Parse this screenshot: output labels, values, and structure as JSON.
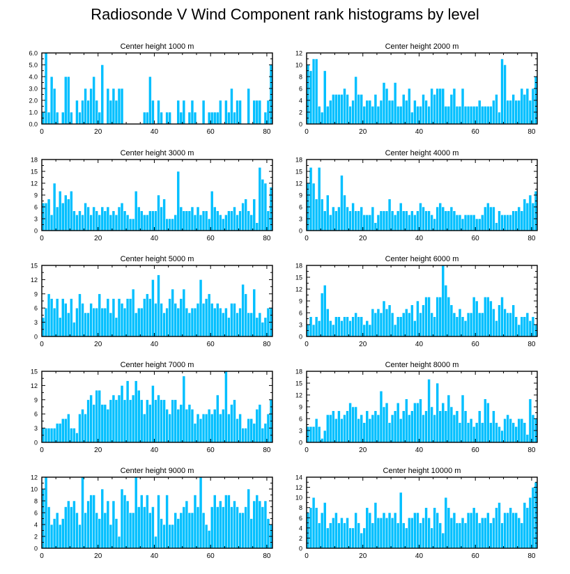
{
  "figure": {
    "title": "Radiosonde V Wind Component rank histograms by level",
    "bar_color": "#00bfff",
    "bar_edge_color": "#ffffff",
    "axis_color": "#000000"
  },
  "chart_data": [
    {
      "type": "bar",
      "title": "Center height 1000 m",
      "x_ticks": [
        0,
        20,
        40,
        60,
        80
      ],
      "y_ticks": [
        "0.0",
        "1.0",
        "2.0",
        "3.0",
        "4.0",
        "5.0",
        "6.0"
      ],
      "ylim": [
        0,
        6
      ],
      "values": [
        1,
        6,
        1,
        4,
        3,
        1,
        0,
        1,
        4,
        4,
        1,
        0,
        2,
        1,
        2,
        3,
        2,
        3,
        4,
        2,
        1,
        5,
        0,
        3,
        2,
        3,
        2,
        3,
        3,
        0,
        0,
        0,
        0,
        0,
        0,
        0,
        1,
        1,
        4,
        2,
        0,
        2,
        1,
        0,
        1,
        1,
        0,
        0,
        2,
        1,
        2,
        0,
        1,
        2,
        1,
        0,
        0,
        2,
        0,
        1,
        1,
        1,
        1,
        2,
        0,
        2,
        1,
        3,
        1,
        2,
        2,
        0,
        0,
        3,
        0,
        2,
        2,
        2,
        0,
        1,
        2,
        5
      ]
    },
    {
      "type": "bar",
      "title": "Center height 2000 m",
      "x_ticks": [
        0,
        20,
        40,
        60,
        80
      ],
      "y_ticks": [
        "0",
        "2",
        "4",
        "6",
        "8",
        "10",
        "12"
      ],
      "ylim": [
        0,
        12
      ],
      "values": [
        10,
        9,
        11,
        11,
        3,
        2,
        9,
        3,
        4,
        5,
        5,
        5,
        5,
        6,
        5,
        3,
        4,
        8,
        5,
        5,
        3,
        4,
        4,
        3,
        5,
        3,
        4,
        7,
        6,
        4,
        4,
        7,
        3,
        3,
        5,
        4,
        6,
        2,
        4,
        3,
        3,
        5,
        4,
        3,
        6,
        5,
        6,
        6,
        6,
        3,
        3,
        5,
        6,
        3,
        3,
        6,
        3,
        3,
        3,
        3,
        3,
        4,
        3,
        3,
        3,
        3,
        4,
        5,
        2,
        11,
        10,
        4,
        4,
        5,
        4,
        4,
        6,
        5,
        6,
        4,
        6,
        8
      ]
    },
    {
      "type": "bar",
      "title": "Center height 3000 m",
      "x_ticks": [
        0,
        20,
        40,
        60,
        80
      ],
      "y_ticks": [
        "0",
        "3",
        "6",
        "9",
        "12",
        "15",
        "18"
      ],
      "ylim": [
        0,
        18
      ],
      "values": [
        7,
        7,
        8,
        4,
        12,
        6,
        10,
        7,
        9,
        8,
        10,
        5,
        4,
        5,
        4,
        7,
        6,
        4,
        6,
        5,
        4,
        6,
        5,
        6,
        4,
        5,
        4,
        6,
        7,
        5,
        4,
        3,
        3,
        10,
        6,
        5,
        4,
        4,
        5,
        5,
        5,
        9,
        6,
        8,
        3,
        3,
        3,
        4,
        15,
        6,
        5,
        5,
        5,
        6,
        4,
        6,
        4,
        5,
        5,
        3,
        10,
        6,
        5,
        4,
        3,
        4,
        5,
        5,
        6,
        4,
        5,
        7,
        8,
        5,
        4,
        8,
        2,
        16,
        13,
        12,
        5,
        11
      ]
    },
    {
      "type": "bar",
      "title": "Center height 4000 m",
      "x_ticks": [
        0,
        20,
        40,
        60,
        80
      ],
      "y_ticks": [
        "0",
        "3",
        "6",
        "9",
        "12",
        "15",
        "18"
      ],
      "ylim": [
        0,
        18
      ],
      "values": [
        12,
        16,
        12,
        8,
        16,
        8,
        5,
        9,
        4,
        6,
        5,
        6,
        14,
        9,
        6,
        5,
        7,
        5,
        5,
        6,
        4,
        4,
        4,
        6,
        2,
        4,
        5,
        5,
        5,
        8,
        5,
        4,
        5,
        7,
        5,
        5,
        4,
        5,
        4,
        5,
        7,
        6,
        5,
        5,
        4,
        3,
        6,
        7,
        6,
        5,
        5,
        6,
        5,
        4,
        4,
        3,
        4,
        4,
        4,
        4,
        3,
        3,
        4,
        6,
        7,
        6,
        6,
        2,
        5,
        4,
        4,
        4,
        4,
        5,
        5,
        6,
        5,
        8,
        7,
        9,
        7,
        10
      ]
    },
    {
      "type": "bar",
      "title": "Center height 5000 m",
      "x_ticks": [
        0,
        20,
        40,
        60,
        80
      ],
      "y_ticks": [
        "0",
        "3",
        "6",
        "9",
        "12",
        "15"
      ],
      "ylim": [
        0,
        15
      ],
      "values": [
        4,
        6,
        9,
        8,
        6,
        8,
        4,
        8,
        7,
        5,
        8,
        3,
        6,
        9,
        7,
        5,
        5,
        7,
        6,
        6,
        9,
        6,
        6,
        8,
        5,
        8,
        4,
        8,
        7,
        6,
        8,
        8,
        10,
        5,
        6,
        6,
        8,
        9,
        8,
        12,
        7,
        13,
        7,
        5,
        6,
        8,
        10,
        7,
        6,
        8,
        10,
        6,
        5,
        6,
        6,
        7,
        12,
        7,
        8,
        9,
        7,
        6,
        7,
        6,
        5,
        6,
        4,
        7,
        7,
        5,
        6,
        11,
        9,
        5,
        5,
        10,
        4,
        5,
        3,
        4,
        6,
        6
      ]
    },
    {
      "type": "bar",
      "title": "Center height 6000 m",
      "x_ticks": [
        0,
        20,
        40,
        60,
        80
      ],
      "y_ticks": [
        "0",
        "3",
        "6",
        "9",
        "12",
        "15",
        "18"
      ],
      "ylim": [
        0,
        18
      ],
      "values": [
        3,
        5,
        3,
        5,
        4,
        11,
        13,
        7,
        4,
        3,
        5,
        5,
        4,
        5,
        5,
        4,
        5,
        6,
        5,
        5,
        3,
        4,
        3,
        7,
        6,
        7,
        6,
        9,
        7,
        8,
        6,
        3,
        5,
        5,
        6,
        7,
        6,
        8,
        4,
        9,
        6,
        8,
        10,
        10,
        6,
        5,
        10,
        10,
        18,
        13,
        10,
        8,
        6,
        5,
        7,
        5,
        4,
        6,
        6,
        10,
        9,
        6,
        6,
        10,
        10,
        9,
        7,
        4,
        8,
        10,
        7,
        6,
        6,
        8,
        5,
        3,
        5,
        5,
        6,
        4,
        5,
        3
      ]
    },
    {
      "type": "bar",
      "title": "Center height 7000 m",
      "x_ticks": [
        0,
        20,
        40,
        60,
        80
      ],
      "y_ticks": [
        "0",
        "3",
        "6",
        "9",
        "12",
        "15"
      ],
      "ylim": [
        0,
        15
      ],
      "values": [
        3,
        3,
        3,
        3,
        3,
        4,
        4,
        5,
        5,
        6,
        3,
        3,
        2,
        6,
        7,
        6,
        9,
        10,
        8,
        11,
        11,
        8,
        8,
        7,
        9,
        10,
        9,
        10,
        12,
        9,
        13,
        9,
        10,
        13,
        11,
        9,
        6,
        9,
        8,
        12,
        9,
        10,
        9,
        9,
        7,
        6,
        9,
        9,
        7,
        8,
        14,
        7,
        8,
        7,
        4,
        6,
        5,
        6,
        6,
        7,
        6,
        7,
        10,
        6,
        7,
        15,
        6,
        8,
        9,
        5,
        6,
        3,
        3,
        5,
        5,
        4,
        7,
        8,
        3,
        4,
        6,
        9
      ]
    },
    {
      "type": "bar",
      "title": "Center height 8000 m",
      "x_ticks": [
        0,
        20,
        40,
        60,
        80
      ],
      "y_ticks": [
        "0",
        "3",
        "6",
        "9",
        "12",
        "15",
        "18"
      ],
      "ylim": [
        0,
        18
      ],
      "values": [
        4,
        4,
        4,
        6,
        4,
        1,
        3,
        7,
        7,
        8,
        6,
        8,
        6,
        7,
        8,
        10,
        9,
        9,
        6,
        7,
        5,
        8,
        6,
        7,
        8,
        7,
        13,
        9,
        10,
        5,
        7,
        8,
        10,
        6,
        8,
        11,
        7,
        8,
        10,
        10,
        11,
        7,
        8,
        16,
        9,
        7,
        15,
        8,
        10,
        8,
        12,
        9,
        7,
        8,
        5,
        12,
        8,
        5,
        6,
        4,
        5,
        8,
        5,
        11,
        10,
        5,
        8,
        5,
        4,
        3,
        6,
        7,
        6,
        5,
        4,
        6,
        6,
        5,
        2,
        11,
        7,
        6
      ]
    },
    {
      "type": "bar",
      "title": "Center height 9000 m",
      "x_ticks": [
        0,
        20,
        40,
        60,
        80
      ],
      "y_ticks": [
        "0",
        "2",
        "4",
        "6",
        "8",
        "10",
        "12"
      ],
      "ylim": [
        0,
        12
      ],
      "values": [
        10,
        12,
        7,
        4,
        5,
        6,
        4,
        5,
        7,
        8,
        7,
        8,
        6,
        4,
        12,
        6,
        8,
        9,
        9,
        6,
        5,
        10,
        6,
        8,
        4,
        8,
        5,
        2,
        10,
        9,
        8,
        6,
        6,
        12,
        7,
        9,
        7,
        9,
        6,
        7,
        2,
        9,
        5,
        4,
        9,
        4,
        4,
        6,
        5,
        6,
        7,
        8,
        6,
        6,
        9,
        7,
        12,
        6,
        4,
        3,
        7,
        9,
        7,
        8,
        7,
        9,
        9,
        7,
        8,
        7,
        6,
        6,
        7,
        10,
        5,
        8,
        9,
        8,
        7,
        8,
        5,
        4
      ]
    },
    {
      "type": "bar",
      "title": "Center height 10000 m",
      "x_ticks": [
        0,
        20,
        40,
        60,
        80
      ],
      "y_ticks": [
        "0",
        "2",
        "4",
        "6",
        "8",
        "10",
        "12",
        "14"
      ],
      "ylim": [
        0,
        14
      ],
      "values": [
        7,
        8,
        10,
        8,
        5,
        7,
        9,
        4,
        5,
        6,
        7,
        5,
        6,
        5,
        6,
        4,
        4,
        7,
        5,
        3,
        4,
        8,
        7,
        5,
        9,
        6,
        6,
        7,
        6,
        7,
        6,
        7,
        5,
        11,
        5,
        4,
        6,
        6,
        7,
        7,
        5,
        6,
        8,
        6,
        4,
        8,
        7,
        5,
        3,
        10,
        8,
        6,
        7,
        5,
        5,
        6,
        5,
        7,
        7,
        8,
        7,
        5,
        6,
        6,
        7,
        5,
        6,
        8,
        9,
        5,
        7,
        7,
        8,
        7,
        7,
        6,
        5,
        9,
        8,
        10,
        12,
        13
      ]
    }
  ]
}
